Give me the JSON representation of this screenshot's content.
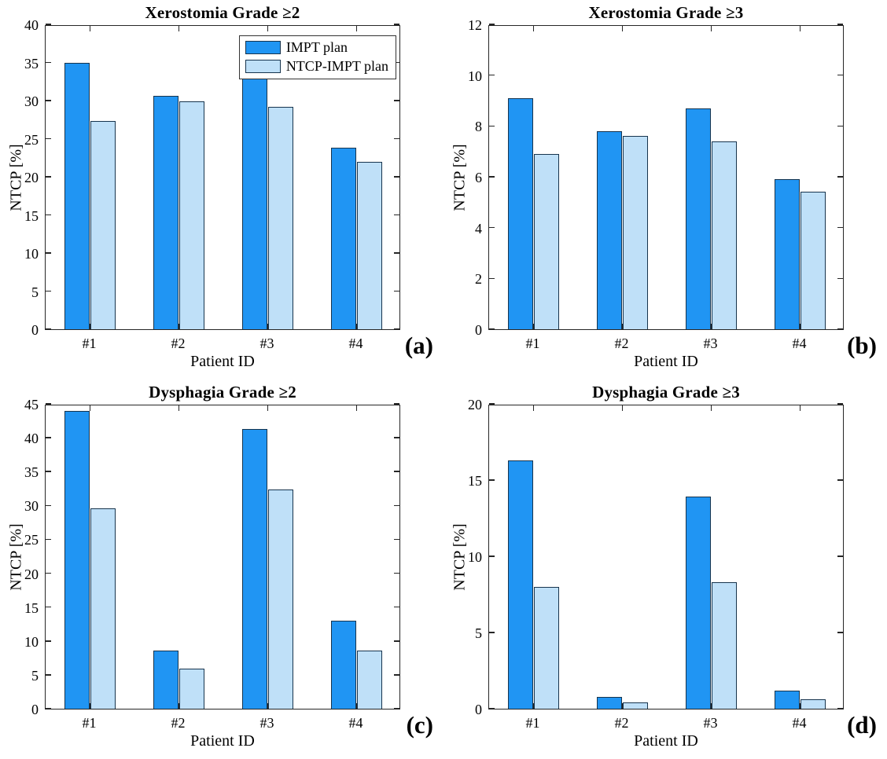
{
  "figure": {
    "series_colors": {
      "impt": "#2095f3",
      "ntcp_impt": "#bfe0f8"
    },
    "edge_color": "#17344d",
    "axis_color": "#262626",
    "background": "#ffffff"
  },
  "legend": {
    "position": "top-right-inside-panel-a",
    "entries": [
      {
        "label": "IMPT plan",
        "series": "impt"
      },
      {
        "label": "NTCP-IMPT plan",
        "series": "ntcp_impt"
      }
    ]
  },
  "chart_data": [
    {
      "id": "a",
      "type": "bar",
      "title": "Xerostomia Grade ≥2",
      "corner_label": "(a)",
      "xlabel": "Patient ID",
      "ylabel": "NTCP [%]",
      "categories": [
        "#1",
        "#2",
        "#3",
        "#4"
      ],
      "series": [
        {
          "name": "IMPT plan",
          "values": [
            35.0,
            30.6,
            33.7,
            23.8
          ]
        },
        {
          "name": "NTCP-IMPT plan",
          "values": [
            27.3,
            29.9,
            29.2,
            22.0
          ]
        }
      ],
      "ylim": [
        0,
        40
      ],
      "yticks": [
        0,
        5,
        10,
        15,
        20,
        25,
        30,
        35,
        40
      ],
      "grid": false,
      "legend": true
    },
    {
      "id": "b",
      "type": "bar",
      "title": "Xerostomia Grade ≥3",
      "corner_label": "(b)",
      "xlabel": "Patient ID",
      "ylabel": "NTCP [%]",
      "categories": [
        "#1",
        "#2",
        "#3",
        "#4"
      ],
      "series": [
        {
          "name": "IMPT plan",
          "values": [
            9.1,
            7.8,
            8.7,
            5.9
          ]
        },
        {
          "name": "NTCP-IMPT plan",
          "values": [
            6.9,
            7.6,
            7.4,
            5.4
          ]
        }
      ],
      "ylim": [
        0,
        12
      ],
      "yticks": [
        0,
        2,
        4,
        6,
        8,
        10,
        12
      ],
      "grid": false,
      "legend": false
    },
    {
      "id": "c",
      "type": "bar",
      "title": "Dysphagia Grade ≥2",
      "corner_label": "(c)",
      "xlabel": "Patient ID",
      "ylabel": "NTCP [%]",
      "categories": [
        "#1",
        "#2",
        "#3",
        "#4"
      ],
      "series": [
        {
          "name": "IMPT plan",
          "values": [
            44.0,
            8.6,
            41.3,
            13.0
          ]
        },
        {
          "name": "NTCP-IMPT plan",
          "values": [
            29.6,
            5.9,
            32.4,
            8.6
          ]
        }
      ],
      "ylim": [
        0,
        45
      ],
      "yticks": [
        0,
        5,
        10,
        15,
        20,
        25,
        30,
        35,
        40,
        45
      ],
      "grid": false,
      "legend": false
    },
    {
      "id": "d",
      "type": "bar",
      "title": "Dysphagia Grade ≥3",
      "corner_label": "(d)",
      "xlabel": "Patient ID",
      "ylabel": "NTCP [%]",
      "categories": [
        "#1",
        "#2",
        "#3",
        "#4"
      ],
      "series": [
        {
          "name": "IMPT plan",
          "values": [
            16.3,
            0.75,
            13.9,
            1.2
          ]
        },
        {
          "name": "NTCP-IMPT plan",
          "values": [
            8.0,
            0.4,
            8.3,
            0.6
          ]
        }
      ],
      "ylim": [
        0,
        20
      ],
      "yticks": [
        0,
        5,
        10,
        15,
        20
      ],
      "grid": false,
      "legend": false
    }
  ]
}
